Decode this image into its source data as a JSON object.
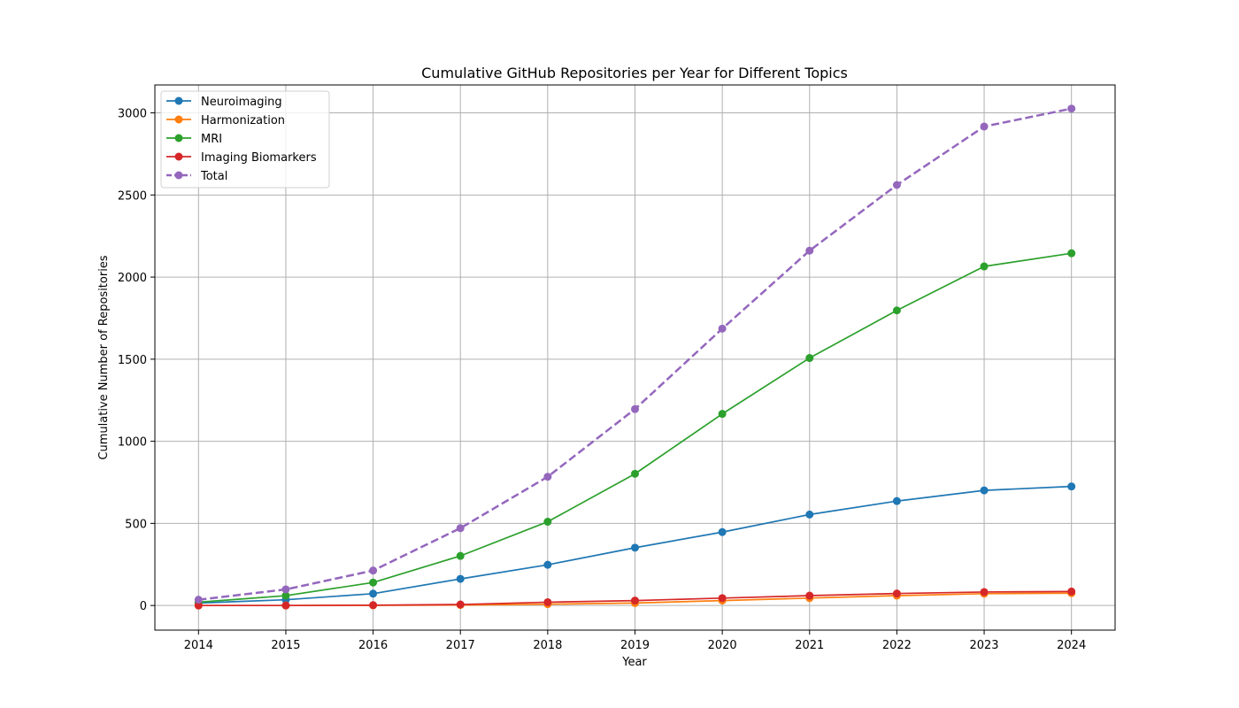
{
  "chart_data": {
    "type": "line",
    "title": "Cumulative GitHub Repositories per Year for Different Topics",
    "xlabel": "Year",
    "ylabel": "Cumulative Number of Repositories",
    "x": [
      2014,
      2015,
      2016,
      2017,
      2018,
      2019,
      2020,
      2021,
      2022,
      2023,
      2024
    ],
    "xticks": [
      "2014",
      "2015",
      "2016",
      "2017",
      "2018",
      "2019",
      "2020",
      "2021",
      "2022",
      "2023",
      "2024"
    ],
    "yticks": [
      "0",
      "500",
      "1000",
      "1500",
      "2000",
      "2500",
      "3000"
    ],
    "ylim": [
      -150,
      3170
    ],
    "xlim": [
      2013.5,
      2024.5
    ],
    "grid": true,
    "legend_position": "top-left",
    "series": [
      {
        "name": "Neuroimaging",
        "color": "#1f77b4",
        "dashed": false,
        "values": [
          15,
          35,
          72,
          162,
          248,
          352,
          447,
          554,
          636,
          701,
          725
        ]
      },
      {
        "name": "Harmonization",
        "color": "#ff7f0e",
        "dashed": false,
        "values": [
          0,
          0,
          1,
          3,
          8,
          15,
          30,
          45,
          60,
          72,
          75
        ]
      },
      {
        "name": "MRI",
        "color": "#2ca02c",
        "dashed": false,
        "values": [
          20,
          60,
          140,
          302,
          510,
          802,
          1167,
          1507,
          1797,
          2065,
          2145
        ]
      },
      {
        "name": "Imaging Biomarkers",
        "color": "#d62728",
        "dashed": false,
        "values": [
          0,
          0,
          2,
          6,
          20,
          30,
          45,
          60,
          73,
          82,
          85
        ]
      },
      {
        "name": "Total",
        "color": "#9467bd",
        "dashed": true,
        "values": [
          35,
          98,
          213,
          471,
          784,
          1196,
          1686,
          2161,
          2561,
          2917,
          3026
        ]
      }
    ]
  }
}
